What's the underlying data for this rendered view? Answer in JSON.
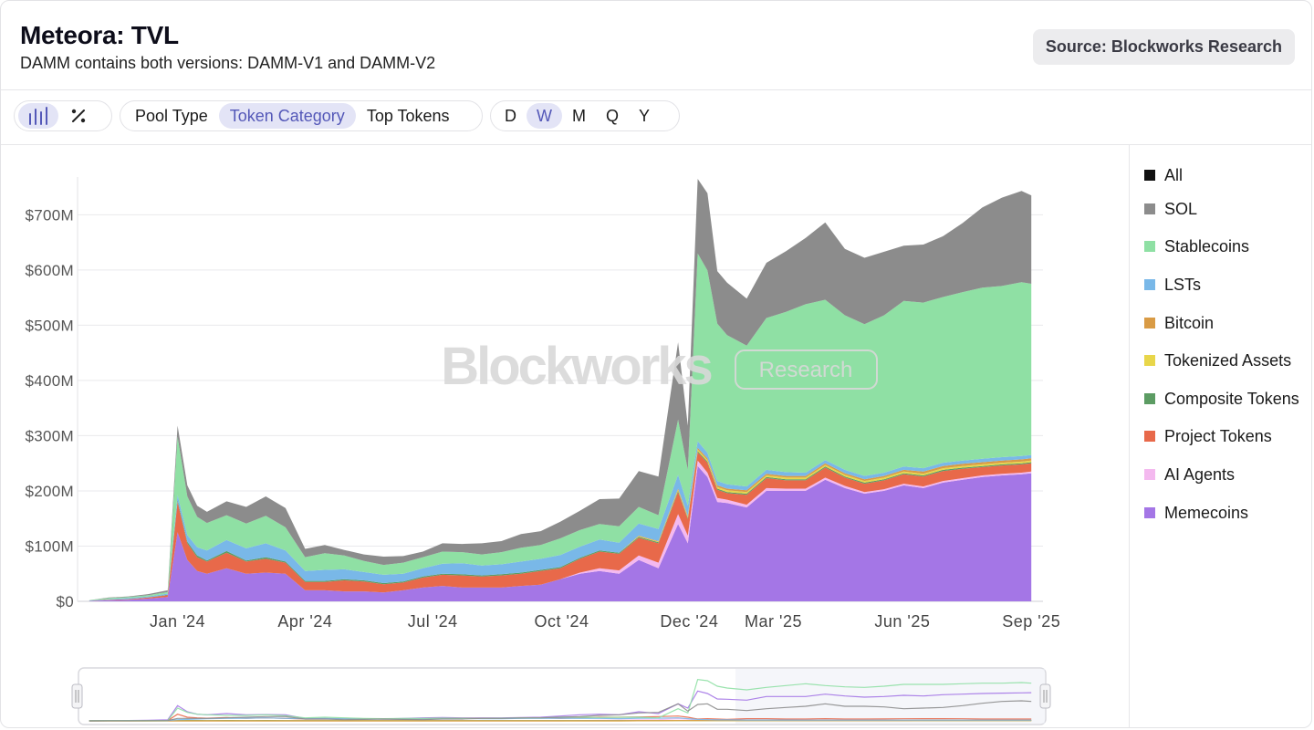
{
  "header": {
    "title": "Meteora: TVL",
    "subtitle": "DAMM contains both versions: DAMM-V1 and DAMM-V2",
    "source": "Source: Blockworks Research"
  },
  "toolbar": {
    "view_icons": [
      "bar-chart-icon",
      "percent-icon"
    ],
    "groupings": [
      {
        "label": "Pool Type",
        "active": false
      },
      {
        "label": "Token Category",
        "active": true
      },
      {
        "label": "Top Tokens",
        "active": false
      }
    ],
    "intervals": [
      {
        "label": "D",
        "active": false
      },
      {
        "label": "W",
        "active": true
      },
      {
        "label": "M",
        "active": false
      },
      {
        "label": "Q",
        "active": false
      },
      {
        "label": "Y",
        "active": false
      }
    ]
  },
  "watermark": {
    "brand": "Blockworks",
    "tag": "Research"
  },
  "colors": {
    "All": "#111111",
    "SOL": "#8c8c8c",
    "Stablecoins": "#8fe0a4",
    "LSTs": "#79b8e8",
    "Bitcoin": "#d99b45",
    "Tokenized Assets": "#e8d64a",
    "Composite Tokens": "#5c9c63",
    "Project Tokens": "#e8694a",
    "AI Agents": "#f4b9ef",
    "Memecoins": "#a476e6"
  },
  "chart_data": {
    "type": "area",
    "stacked": true,
    "title": "Meteora: TVL",
    "subtitle": "DAMM contains both versions: DAMM-V1 and DAMM-V2",
    "xlabel": "",
    "ylabel": "",
    "ylim": [
      0,
      760
    ],
    "y_unit": "$M",
    "yticks": [
      "$0",
      "$100M",
      "$200M",
      "$300M",
      "$400M",
      "$500M",
      "$600M",
      "$700M"
    ],
    "xticks": [
      "Jan '24",
      "Apr '24",
      "Jul '24",
      "Oct '24",
      "Dec '24",
      "Mar '25",
      "Jun '25",
      "Sep '25"
    ],
    "x_range": [
      "2023-10-23",
      "2025-09-08"
    ],
    "grid": true,
    "legend": "right",
    "legend_entries": [
      "All",
      "SOL",
      "Stablecoins",
      "LSTs",
      "Bitcoin",
      "Tokenized Assets",
      "Composite Tokens",
      "Project Tokens",
      "AI Agents",
      "Memecoins"
    ],
    "x": [
      "2023-10-30",
      "2023-11-13",
      "2023-11-27",
      "2023-12-11",
      "2023-12-25",
      "2024-01-01",
      "2024-01-08",
      "2024-01-15",
      "2024-01-22",
      "2024-02-05",
      "2024-02-19",
      "2024-03-04",
      "2024-03-18",
      "2024-04-01",
      "2024-04-15",
      "2024-04-29",
      "2024-05-13",
      "2024-05-27",
      "2024-06-10",
      "2024-06-24",
      "2024-07-08",
      "2024-07-22",
      "2024-08-05",
      "2024-08-19",
      "2024-09-02",
      "2024-09-16",
      "2024-09-30",
      "2024-10-14",
      "2024-10-28",
      "2024-11-11",
      "2024-11-25",
      "2024-12-09",
      "2024-12-23",
      "2024-12-30",
      "2025-01-06",
      "2025-01-13",
      "2025-01-20",
      "2025-01-27",
      "2025-02-10",
      "2025-02-24",
      "2025-03-10",
      "2025-03-24",
      "2025-04-07",
      "2025-04-21",
      "2025-05-05",
      "2025-05-19",
      "2025-06-02",
      "2025-06-16",
      "2025-06-30",
      "2025-07-14",
      "2025-07-28",
      "2025-08-11",
      "2025-08-25",
      "2025-09-01"
    ],
    "series": [
      {
        "name": "Memecoins",
        "values": [
          1,
          2,
          3,
          5,
          8,
          125,
          75,
          55,
          50,
          60,
          50,
          52,
          50,
          20,
          20,
          18,
          18,
          16,
          20,
          25,
          28,
          25,
          25,
          25,
          28,
          30,
          40,
          50,
          55,
          50,
          75,
          60,
          140,
          105,
          245,
          225,
          180,
          178,
          170,
          200,
          200,
          200,
          220,
          205,
          195,
          200,
          210,
          205,
          215,
          220,
          225,
          228,
          230,
          232
        ]
      },
      {
        "name": "AI Agents",
        "values": [
          0,
          0,
          0,
          0,
          0,
          0,
          0,
          0,
          0,
          0,
          0,
          0,
          0,
          0,
          0,
          0,
          0,
          0,
          0,
          0,
          0,
          0,
          0,
          0,
          0,
          0,
          0,
          2,
          5,
          6,
          8,
          10,
          18,
          14,
          10,
          8,
          7,
          6,
          5,
          5,
          4,
          4,
          4,
          4,
          3,
          3,
          3,
          3,
          3,
          3,
          3,
          3,
          3,
          3
        ]
      },
      {
        "name": "Project Tokens",
        "values": [
          0,
          1,
          1,
          2,
          3,
          55,
          30,
          25,
          22,
          28,
          22,
          25,
          20,
          15,
          15,
          20,
          18,
          15,
          14,
          18,
          20,
          22,
          20,
          22,
          22,
          25,
          20,
          25,
          30,
          30,
          32,
          35,
          40,
          30,
          15,
          18,
          15,
          12,
          18,
          18,
          15,
          15,
          18,
          15,
          15,
          16,
          17,
          18,
          18,
          17,
          15,
          15,
          15,
          15
        ]
      },
      {
        "name": "Composite Tokens",
        "values": [
          0,
          0,
          0,
          0,
          1,
          3,
          3,
          3,
          2,
          3,
          2,
          3,
          2,
          2,
          2,
          2,
          2,
          2,
          2,
          2,
          2,
          2,
          2,
          2,
          2,
          2,
          2,
          2,
          2,
          2,
          2,
          2,
          2,
          2,
          2,
          2,
          2,
          2,
          2,
          2,
          2,
          2,
          2,
          2,
          2,
          2,
          2,
          2,
          2,
          2,
          2,
          2,
          2,
          2
        ]
      },
      {
        "name": "Tokenized Assets",
        "values": [
          0,
          0,
          0,
          0,
          0,
          0,
          0,
          0,
          0,
          0,
          0,
          0,
          0,
          0,
          0,
          0,
          0,
          0,
          0,
          0,
          0,
          0,
          0,
          0,
          0,
          0,
          0,
          0,
          0,
          0,
          1,
          1,
          2,
          2,
          3,
          3,
          3,
          3,
          3,
          3,
          3,
          3,
          3,
          3,
          3,
          3,
          3,
          3,
          3,
          3,
          3,
          3,
          3,
          3
        ]
      },
      {
        "name": "Bitcoin",
        "values": [
          0,
          0,
          0,
          0,
          0,
          0,
          0,
          0,
          0,
          0,
          0,
          0,
          0,
          0,
          0,
          0,
          0,
          0,
          0,
          0,
          0,
          0,
          0,
          0,
          0,
          0,
          0,
          0,
          0,
          0,
          1,
          1,
          2,
          2,
          3,
          3,
          3,
          3,
          3,
          3,
          3,
          3,
          3,
          3,
          3,
          3,
          3,
          4,
          4,
          4,
          4,
          4,
          4,
          4
        ]
      },
      {
        "name": "LSTs",
        "values": [
          0,
          1,
          2,
          2,
          2,
          10,
          12,
          15,
          18,
          20,
          22,
          25,
          20,
          18,
          20,
          18,
          15,
          15,
          14,
          15,
          18,
          20,
          18,
          18,
          20,
          20,
          22,
          20,
          20,
          18,
          22,
          22,
          25,
          18,
          12,
          10,
          8,
          8,
          7,
          7,
          7,
          6,
          6,
          6,
          6,
          6,
          6,
          6,
          6,
          6,
          6,
          6,
          6,
          6
        ]
      },
      {
        "name": "Stablecoins",
        "values": [
          1,
          2,
          2,
          2,
          3,
          105,
          70,
          55,
          50,
          45,
          45,
          50,
          42,
          25,
          30,
          25,
          20,
          18,
          20,
          20,
          22,
          20,
          20,
          22,
          25,
          25,
          30,
          30,
          28,
          30,
          30,
          25,
          100,
          65,
          340,
          330,
          285,
          270,
          255,
          275,
          290,
          305,
          290,
          280,
          275,
          285,
          300,
          300,
          300,
          305,
          310,
          310,
          315,
          310
        ]
      },
      {
        "name": "SOL",
        "values": [
          0,
          1,
          1,
          2,
          3,
          20,
          20,
          20,
          20,
          25,
          30,
          35,
          35,
          15,
          15,
          10,
          12,
          15,
          12,
          10,
          15,
          15,
          20,
          20,
          25,
          25,
          30,
          35,
          45,
          50,
          65,
          70,
          140,
          80,
          135,
          140,
          95,
          95,
          85,
          100,
          110,
          120,
          140,
          120,
          120,
          115,
          100,
          105,
          110,
          125,
          145,
          160,
          165,
          160
        ]
      }
    ]
  }
}
